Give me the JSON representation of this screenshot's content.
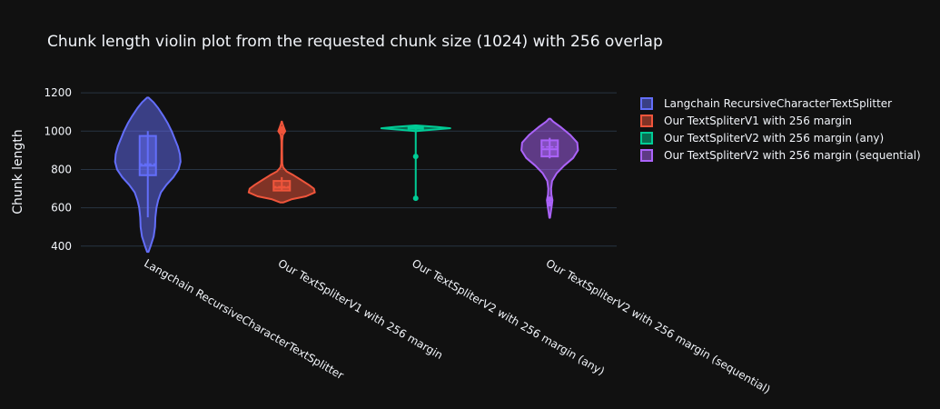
{
  "chart_data": {
    "type": "violin",
    "title": "Chunk length violin plot from the requested chunk size (1024) with 256 overlap",
    "xlabel": "",
    "ylabel": "Chunk length",
    "ylim": [
      380,
      1210
    ],
    "yticks": [
      400,
      600,
      800,
      1000,
      1200
    ],
    "grid": true,
    "legend_position": "top-right",
    "series": [
      {
        "name": "Langchain RecursiveCharacterTextSplitter",
        "color": "#636efa",
        "min": 550,
        "q1": 770,
        "median": 820,
        "mean": 828,
        "q3": 975,
        "max": 1000,
        "range": [
          370,
          1175
        ],
        "outliers": [],
        "density": [
          [
            370,
            0.02
          ],
          [
            400,
            0.08
          ],
          [
            450,
            0.17
          ],
          [
            500,
            0.21
          ],
          [
            550,
            0.22
          ],
          [
            600,
            0.25
          ],
          [
            640,
            0.3
          ],
          [
            680,
            0.38
          ],
          [
            720,
            0.54
          ],
          [
            760,
            0.74
          ],
          [
            800,
            0.89
          ],
          [
            840,
            0.95
          ],
          [
            880,
            0.93
          ],
          [
            920,
            0.87
          ],
          [
            960,
            0.78
          ],
          [
            1000,
            0.69
          ],
          [
            1040,
            0.58
          ],
          [
            1080,
            0.45
          ],
          [
            1120,
            0.3
          ],
          [
            1150,
            0.17
          ],
          [
            1175,
            0.02
          ]
        ]
      },
      {
        "name": "Our TextSpliterV1 with 256 margin",
        "color": "#ef553b",
        "min": 690,
        "q1": 690,
        "median": 705,
        "mean": 710,
        "q3": 740,
        "max": 760,
        "range": [
          628,
          1050
        ],
        "outliers": [
          1000,
          1005,
          1012
        ],
        "density": [
          [
            628,
            0.05
          ],
          [
            645,
            0.3
          ],
          [
            660,
            0.7
          ],
          [
            680,
            0.96
          ],
          [
            700,
            0.93
          ],
          [
            720,
            0.78
          ],
          [
            745,
            0.56
          ],
          [
            770,
            0.34
          ],
          [
            790,
            0.14
          ],
          [
            810,
            0.04
          ],
          [
            830,
            0.015
          ],
          [
            860,
            0.012
          ],
          [
            900,
            0.01
          ],
          [
            950,
            0.012
          ],
          [
            980,
            0.03
          ],
          [
            1000,
            0.1
          ],
          [
            1020,
            0.06
          ],
          [
            1040,
            0.02
          ],
          [
            1050,
            0.005
          ]
        ]
      },
      {
        "name": "Our TextSpliterV2 with 256 margin (any)",
        "color": "#00cc96",
        "min": 1005,
        "q1": 1012,
        "median": 1018,
        "mean": 1016,
        "q3": 1022,
        "max": 1025,
        "range": [
          1000,
          1030
        ],
        "outliers": [
          868,
          650
        ],
        "density": [
          [
            1000,
            0.02
          ],
          [
            1008,
            0.5
          ],
          [
            1015,
            1.0
          ],
          [
            1022,
            0.6
          ],
          [
            1030,
            0.02
          ]
        ],
        "spine": [
          650,
          1005
        ]
      },
      {
        "name": "Our TextSpliterV2 with 256 margin (sequential)",
        "color": "#ab63fa",
        "min": 858,
        "q1": 868,
        "median": 905,
        "mean": 918,
        "q3": 952,
        "max": 965,
        "range": [
          548,
          1065
        ],
        "outliers": [
          620,
          645
        ],
        "density": [
          [
            548,
            0.01
          ],
          [
            575,
            0.03
          ],
          [
            610,
            0.06
          ],
          [
            640,
            0.08
          ],
          [
            670,
            0.05
          ],
          [
            700,
            0.04
          ],
          [
            740,
            0.07
          ],
          [
            780,
            0.2
          ],
          [
            820,
            0.42
          ],
          [
            860,
            0.68
          ],
          [
            900,
            0.82
          ],
          [
            940,
            0.8
          ],
          [
            980,
            0.6
          ],
          [
            1020,
            0.33
          ],
          [
            1050,
            0.1
          ],
          [
            1065,
            0.02
          ]
        ]
      }
    ]
  }
}
